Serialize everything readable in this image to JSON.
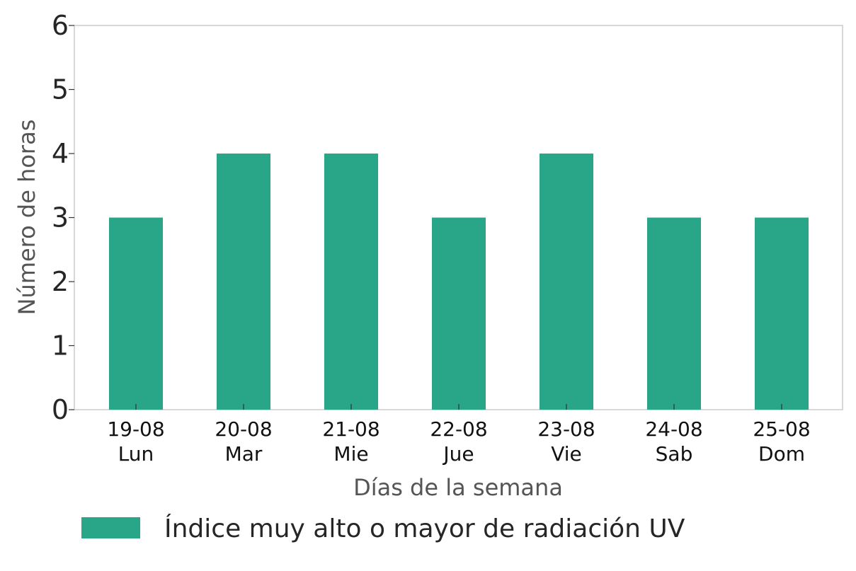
{
  "chart_data": {
    "type": "bar",
    "categories": [
      [
        "19-08",
        "Lun"
      ],
      [
        "20-08",
        "Mar"
      ],
      [
        "21-08",
        "Mie"
      ],
      [
        "22-08",
        "Jue"
      ],
      [
        "23-08",
        "Vie"
      ],
      [
        "24-08",
        "Sab"
      ],
      [
        "25-08",
        "Dom"
      ]
    ],
    "series": [
      {
        "name": "Índice muy alto o mayor de radiación UV",
        "values": [
          3,
          4,
          4,
          3,
          4,
          3,
          3
        ],
        "color": "#28a687"
      }
    ],
    "xlabel": "Días de la semana",
    "ylabel": "Número de horas",
    "ylim": [
      0,
      6
    ],
    "yticks": [
      0,
      1,
      2,
      3,
      4,
      5,
      6
    ],
    "grid": false,
    "legend_position": "bottom-left"
  }
}
